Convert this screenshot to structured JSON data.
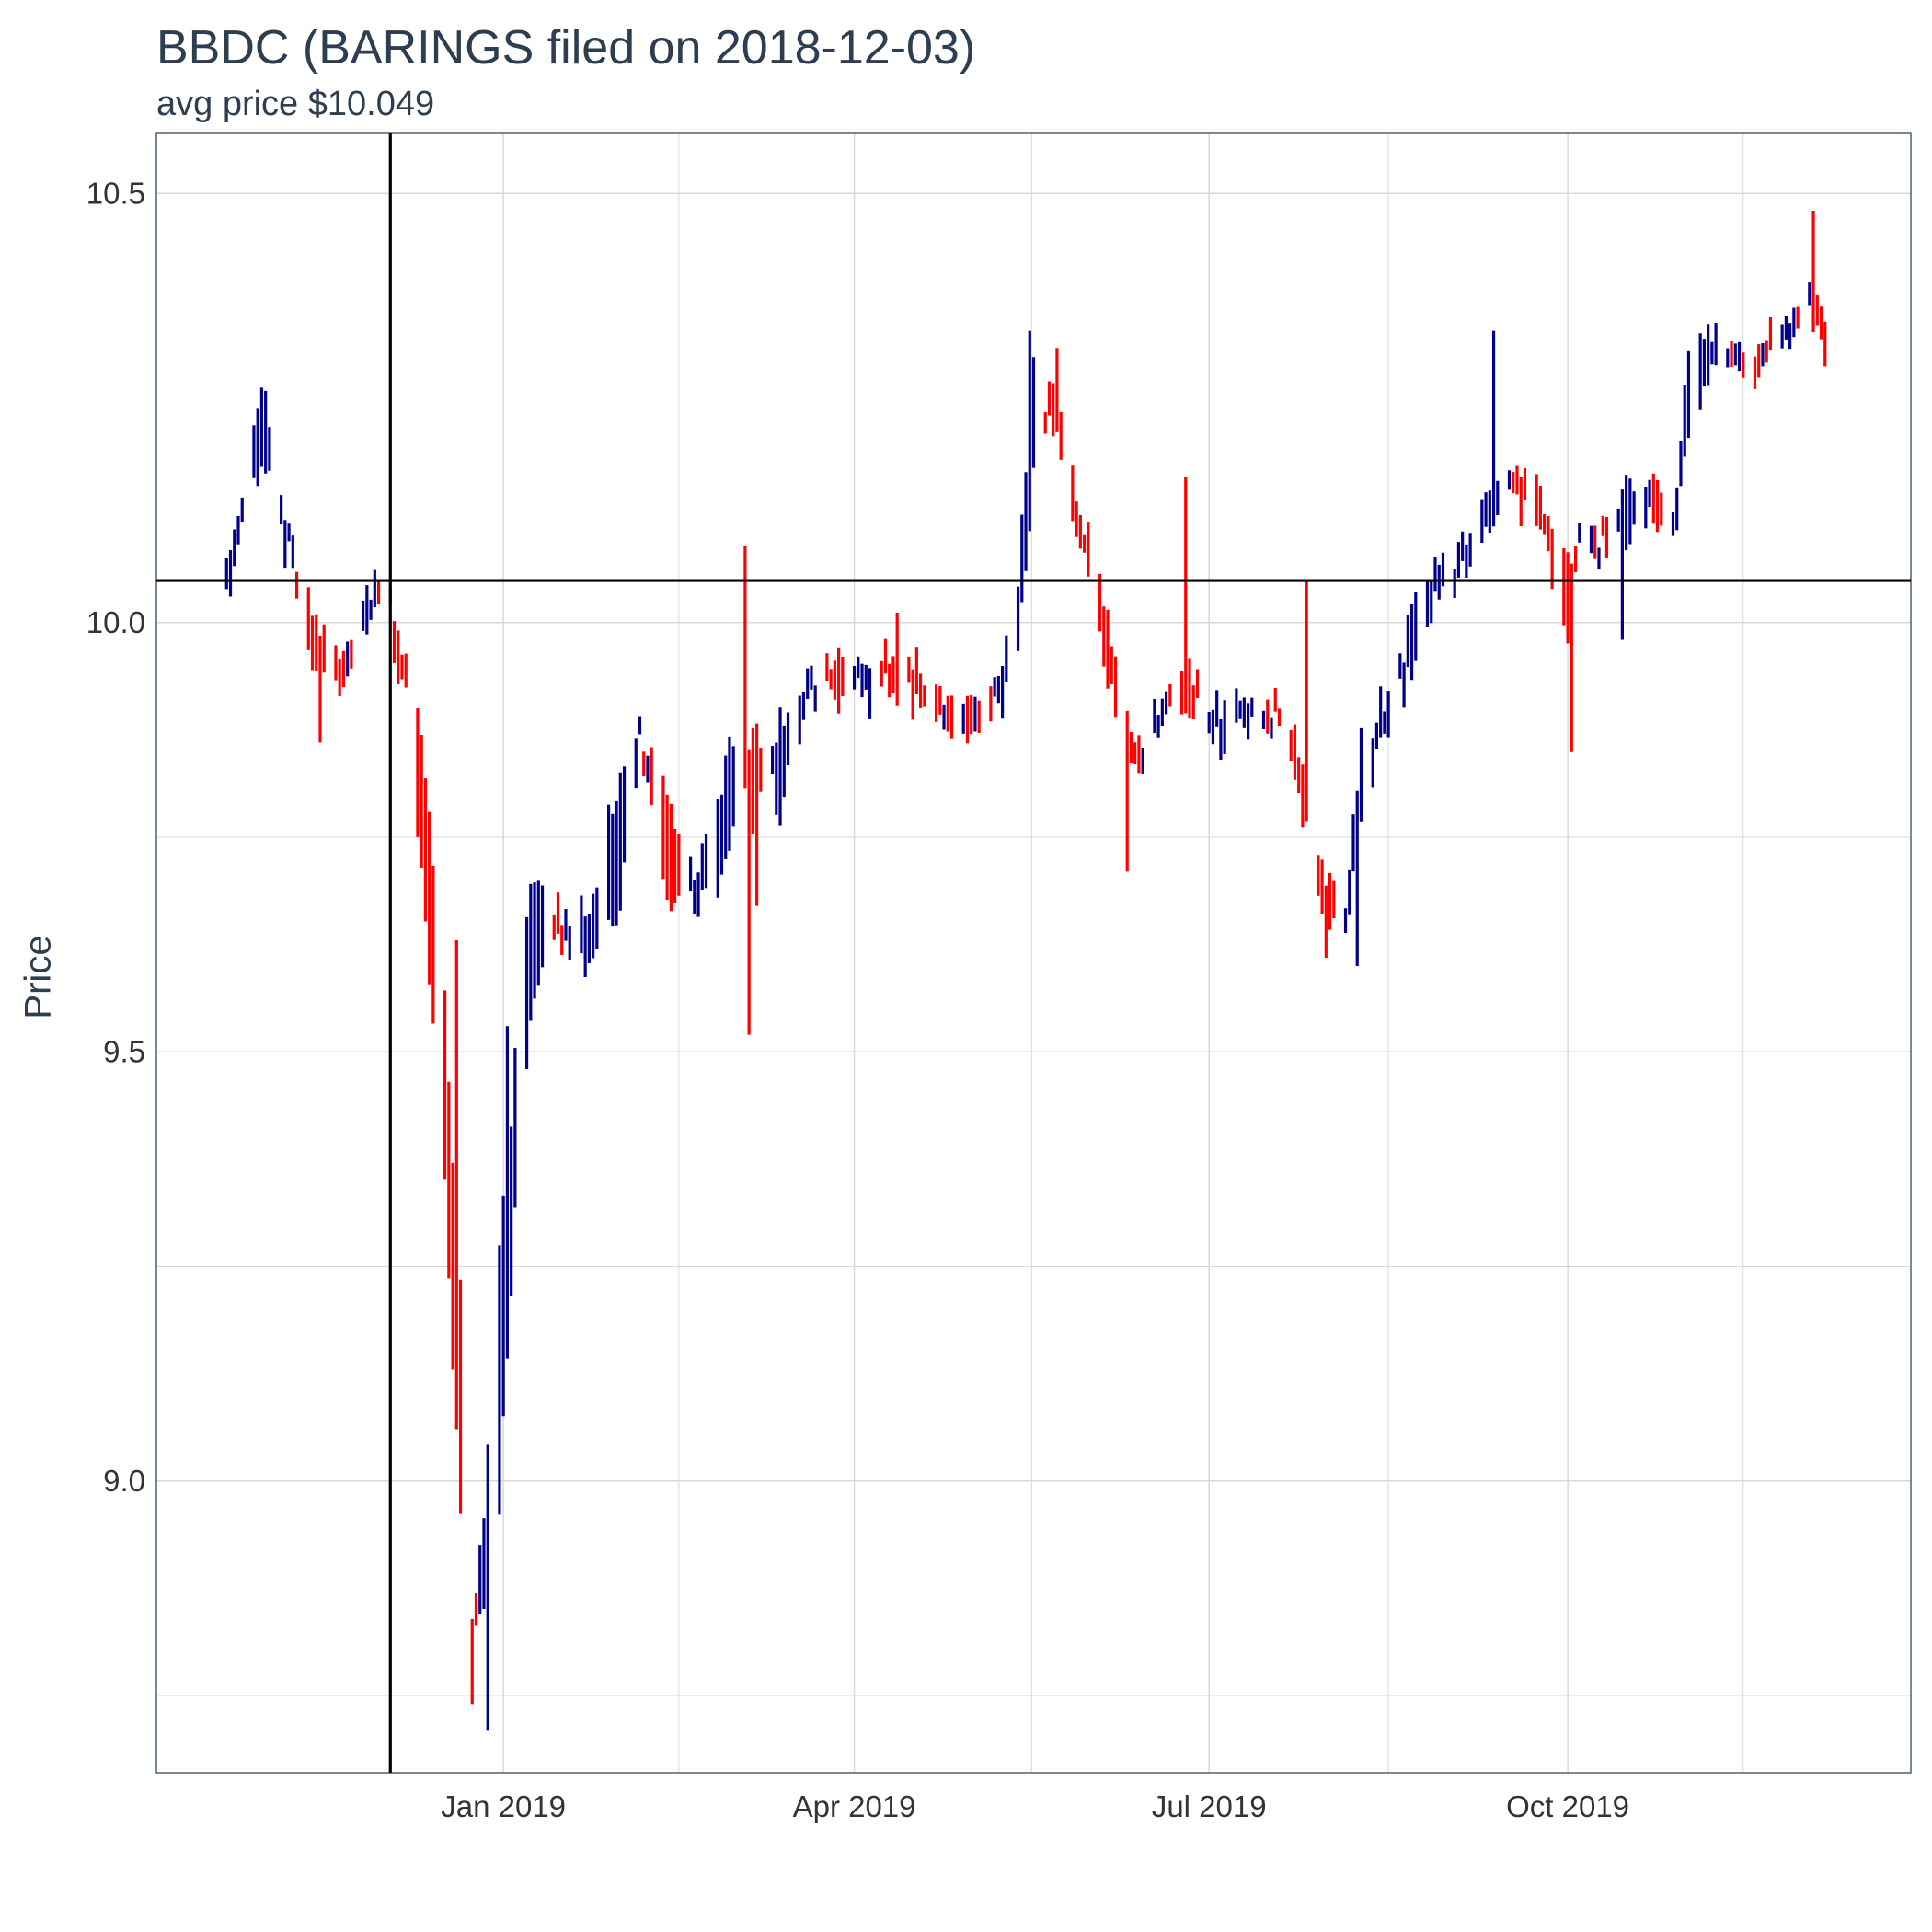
{
  "chart_data": {
    "type": "bar",
    "subtype": "ohlc-range",
    "title": "BBDC (BARINGS filed on 2018-12-03)",
    "subtitle": "avg price $10.049",
    "xlabel": "",
    "ylabel": "Price",
    "x_ticks": [
      "Jan 2019",
      "Apr 2019",
      "Jul 2019",
      "Oct 2019"
    ],
    "x_tick_dates": [
      "2019-01-01",
      "2019-04-01",
      "2019-07-01",
      "2019-10-01"
    ],
    "y_ticks": [
      "9.0",
      "9.5",
      "10.0",
      "10.5"
    ],
    "ylim": [
      8.66,
      10.57
    ],
    "xlim": [
      "2018-10-04",
      "2019-12-28"
    ],
    "grid": true,
    "reference_lines": {
      "vertical_date": "2018-12-03",
      "horizontal_value": 10.049
    },
    "colors": {
      "up": "#00008b",
      "down": "#ff0000",
      "reference": "#000000",
      "grid": "#d9d9d9",
      "text": "#2c3e50"
    },
    "anchors": [
      [
        "2018-10-22",
        10.03,
        10.06
      ],
      [
        "2018-10-26",
        10.12,
        10.16
      ],
      [
        "2018-10-31",
        10.19,
        10.25
      ],
      [
        "2018-11-06",
        10.08,
        10.12
      ],
      [
        "2018-11-12",
        10.02,
        9.97
      ],
      [
        "2018-11-20",
        9.95,
        9.92
      ],
      [
        "2018-11-28",
        10.02,
        10.05
      ],
      [
        "2018-12-03",
        10.03,
        10.0
      ],
      [
        "2018-12-07",
        9.96,
        9.9
      ],
      [
        "2018-12-12",
        9.82,
        9.66
      ],
      [
        "2018-12-17",
        9.55,
        9.36
      ],
      [
        "2018-12-21",
        9.22,
        8.95
      ],
      [
        "2018-12-24",
        8.85,
        8.79
      ],
      [
        "2018-12-27",
        8.87,
        8.97
      ],
      [
        "2018-12-31",
        8.98,
        9.25
      ],
      [
        "2019-01-04",
        9.3,
        9.5
      ],
      [
        "2019-01-08",
        9.55,
        9.7
      ],
      [
        "2019-01-14",
        9.68,
        9.64
      ],
      [
        "2019-01-22",
        9.6,
        9.66
      ],
      [
        "2019-01-31",
        9.68,
        9.82
      ],
      [
        "2019-02-05",
        9.86,
        9.88
      ],
      [
        "2019-02-12",
        9.82,
        9.68
      ],
      [
        "2019-02-20",
        9.66,
        9.7
      ],
      [
        "2019-02-28",
        9.72,
        9.85
      ],
      [
        "2019-03-06",
        9.9,
        9.76
      ],
      [
        "2019-03-13",
        9.78,
        9.88
      ],
      [
        "2019-03-20",
        9.9,
        9.94
      ],
      [
        "2019-03-27",
        9.98,
        9.9
      ],
      [
        "2019-04-05",
        9.9,
        9.97
      ],
      [
        "2019-04-12",
        10.0,
        9.92
      ],
      [
        "2019-04-22",
        9.9,
        9.88
      ],
      [
        "2019-05-01",
        9.9,
        9.88
      ],
      [
        "2019-05-08",
        9.9,
        9.93
      ],
      [
        "2019-05-13",
        9.95,
        10.05
      ],
      [
        "2019-05-17",
        10.16,
        10.3
      ],
      [
        "2019-05-21",
        10.29,
        10.24
      ],
      [
        "2019-05-28",
        10.14,
        10.1
      ],
      [
        "2019-06-04",
        10.04,
        9.96
      ],
      [
        "2019-06-11",
        9.86,
        9.82
      ],
      [
        "2019-06-18",
        9.86,
        9.9
      ],
      [
        "2019-06-24",
        9.96,
        9.9
      ],
      [
        "2019-07-02",
        9.86,
        9.9
      ],
      [
        "2019-07-10",
        9.88,
        9.92
      ],
      [
        "2019-07-18",
        9.9,
        9.88
      ],
      [
        "2019-07-24",
        9.86,
        9.8
      ],
      [
        "2019-07-31",
        9.7,
        9.62
      ],
      [
        "2019-08-06",
        9.64,
        9.7
      ],
      [
        "2019-08-09",
        9.78,
        9.86
      ],
      [
        "2019-08-16",
        9.88,
        9.92
      ],
      [
        "2019-08-23",
        9.95,
        10.02
      ],
      [
        "2019-08-29",
        10.04,
        10.07
      ],
      [
        "2019-09-06",
        10.06,
        10.1
      ],
      [
        "2019-09-12",
        10.12,
        10.18
      ],
      [
        "2019-09-17",
        10.18,
        10.15
      ],
      [
        "2019-09-24",
        10.16,
        10.1
      ],
      [
        "2019-10-01",
        10.06,
        9.98
      ],
      [
        "2019-10-04",
        10.08,
        10.12
      ],
      [
        "2019-10-10",
        10.1,
        10.08
      ],
      [
        "2019-10-17",
        10.1,
        10.18
      ],
      [
        "2019-10-23",
        10.15,
        10.12
      ],
      [
        "2019-10-29",
        10.12,
        10.16
      ],
      [
        "2019-11-01",
        10.22,
        10.3
      ],
      [
        "2019-11-07",
        10.3,
        10.35
      ],
      [
        "2019-11-12",
        10.3,
        10.33
      ],
      [
        "2019-11-19",
        10.32,
        10.3
      ],
      [
        "2019-11-25",
        10.33,
        10.36
      ],
      [
        "2019-12-02",
        10.38,
        10.36
      ],
      [
        "2019-12-06",
        10.36,
        10.29
      ]
    ],
    "spikes": [
      [
        "2018-10-29",
        10.22
      ],
      [
        "2018-11-01",
        10.27
      ],
      [
        "2018-11-15",
        9.86
      ],
      [
        "2018-12-20",
        9.63
      ],
      [
        "2018-12-24",
        8.74
      ],
      [
        "2018-12-28",
        8.71
      ],
      [
        "2019-01-02",
        9.53
      ],
      [
        "2019-01-07",
        9.48
      ],
      [
        "2019-03-04",
        10.09
      ],
      [
        "2019-03-05",
        9.52
      ],
      [
        "2019-03-07",
        9.67
      ],
      [
        "2019-05-16",
        10.34
      ],
      [
        "2019-05-23",
        10.32
      ],
      [
        "2019-06-10",
        9.71
      ],
      [
        "2019-06-25",
        10.17
      ],
      [
        "2019-07-26",
        10.05
      ],
      [
        "2019-08-08",
        9.6
      ],
      [
        "2019-09-12",
        10.34
      ],
      [
        "2019-10-02",
        9.85
      ],
      [
        "2019-10-15",
        9.98
      ],
      [
        "2019-11-03",
        10.38
      ],
      [
        "2019-11-09",
        10.41
      ],
      [
        "2019-12-01",
        10.41
      ],
      [
        "2019-12-03",
        10.48
      ]
    ]
  }
}
